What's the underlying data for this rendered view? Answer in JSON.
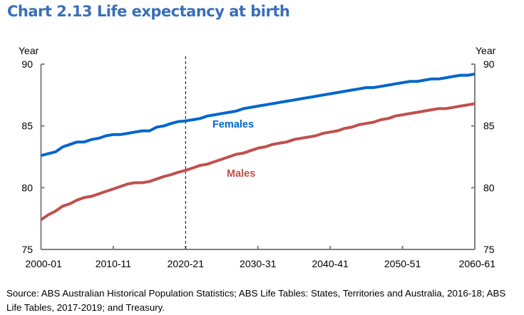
{
  "chart_data": {
    "type": "line",
    "title": "Chart 2.13  Life expectancy at birth",
    "ylabel_left": "Year",
    "ylabel_right": "Year",
    "ylim": [
      75,
      90
    ],
    "yticks": [
      75,
      80,
      85,
      90
    ],
    "xtick_labels": [
      "2000-01",
      "2010-11",
      "2020-21",
      "2030-31",
      "2040-41",
      "2050-51",
      "2060-61"
    ],
    "categories": [
      "2000-01",
      "2001-02",
      "2002-03",
      "2003-04",
      "2004-05",
      "2005-06",
      "2006-07",
      "2007-08",
      "2008-09",
      "2009-10",
      "2010-11",
      "2011-12",
      "2012-13",
      "2013-14",
      "2014-15",
      "2015-16",
      "2016-17",
      "2017-18",
      "2018-19",
      "2019-20",
      "2020-21",
      "2021-22",
      "2022-23",
      "2023-24",
      "2024-25",
      "2025-26",
      "2026-27",
      "2027-28",
      "2028-29",
      "2029-30",
      "2030-31",
      "2031-32",
      "2032-33",
      "2033-34",
      "2034-35",
      "2035-36",
      "2036-37",
      "2037-38",
      "2038-39",
      "2039-40",
      "2040-41",
      "2041-42",
      "2042-43",
      "2043-44",
      "2044-45",
      "2045-46",
      "2046-47",
      "2047-48",
      "2048-49",
      "2049-50",
      "2050-51",
      "2051-52",
      "2052-53",
      "2053-54",
      "2054-55",
      "2055-56",
      "2056-57",
      "2057-58",
      "2058-59",
      "2059-60",
      "2060-61"
    ],
    "projection_start": "2020-21",
    "grid": false,
    "series": [
      {
        "name": "Females",
        "color": "#0066cc",
        "values": [
          82.6,
          82.75,
          82.9,
          83.3,
          83.5,
          83.7,
          83.7,
          83.9,
          84.0,
          84.2,
          84.3,
          84.3,
          84.4,
          84.5,
          84.6,
          84.6,
          84.9,
          85.0,
          85.2,
          85.35,
          85.4,
          85.5,
          85.6,
          85.8,
          85.9,
          86.0,
          86.1,
          86.2,
          86.4,
          86.5,
          86.6,
          86.7,
          86.8,
          86.9,
          87.0,
          87.1,
          87.2,
          87.3,
          87.4,
          87.5,
          87.6,
          87.7,
          87.8,
          87.9,
          88.0,
          88.1,
          88.1,
          88.2,
          88.3,
          88.4,
          88.5,
          88.6,
          88.6,
          88.7,
          88.8,
          88.8,
          88.9,
          89.0,
          89.1,
          89.1,
          89.2
        ]
      },
      {
        "name": "Males",
        "color": "#c0504d",
        "values": [
          77.4,
          77.8,
          78.1,
          78.5,
          78.7,
          79.0,
          79.2,
          79.3,
          79.5,
          79.7,
          79.9,
          80.1,
          80.3,
          80.4,
          80.4,
          80.5,
          80.7,
          80.9,
          81.06,
          81.25,
          81.4,
          81.6,
          81.8,
          81.9,
          82.1,
          82.3,
          82.5,
          82.7,
          82.8,
          83.0,
          83.2,
          83.3,
          83.5,
          83.6,
          83.7,
          83.9,
          84.0,
          84.1,
          84.2,
          84.4,
          84.5,
          84.6,
          84.8,
          84.9,
          85.1,
          85.2,
          85.3,
          85.5,
          85.6,
          85.8,
          85.9,
          86.0,
          86.1,
          86.2,
          86.3,
          86.4,
          86.4,
          86.5,
          86.6,
          86.7,
          86.8
        ]
      }
    ]
  },
  "source": "Source: ABS Australian Historical Population Statistics; ABS Life Tables: States, Territories and Australia, 2016-18; ABS Life Tables, 2017-2019; and Treasury."
}
